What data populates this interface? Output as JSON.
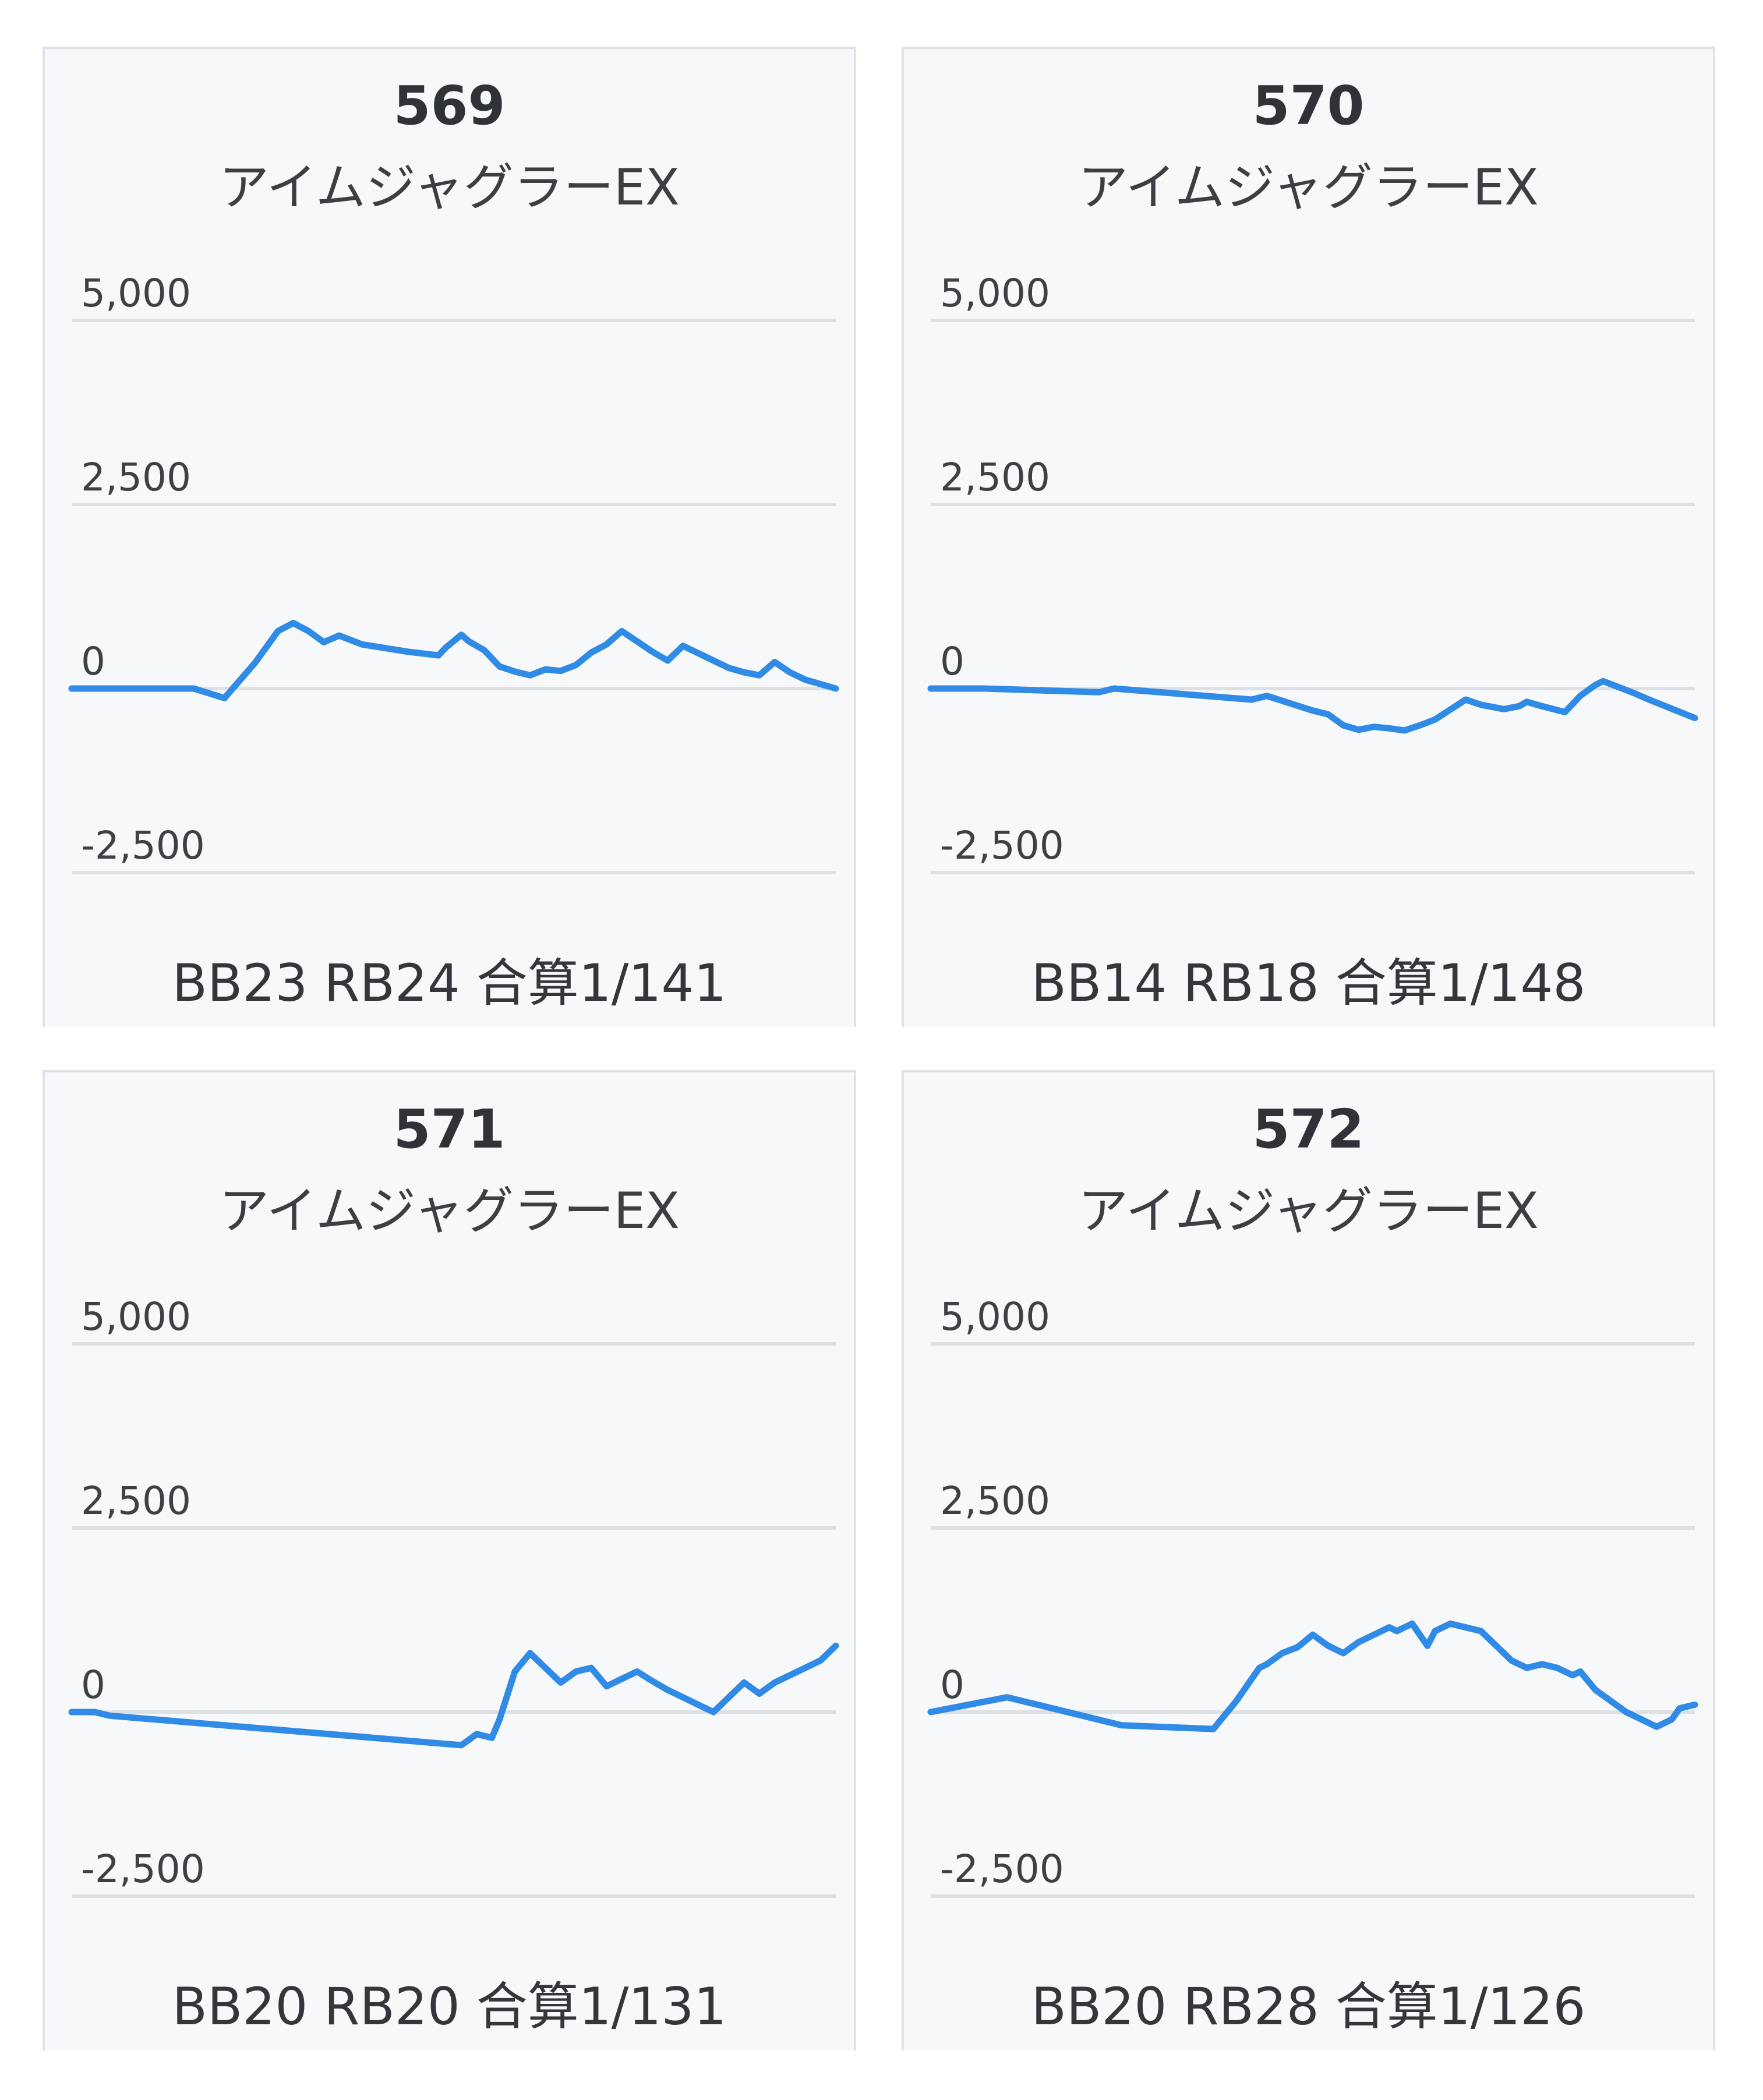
{
  "chart_data": [
    {
      "type": "line",
      "title": "569",
      "subtitle": "アイムジャグラーEX",
      "ylim": [
        -2500,
        5000
      ],
      "yticks": [
        5000,
        2500,
        0,
        -2500
      ],
      "ytick_labels": [
        "5,000",
        "2,500",
        "0",
        "-2,500"
      ],
      "stats": "BB23 RB24 合算1/141",
      "line_color": "#2f8be6",
      "grid": true,
      "x": [
        0,
        7,
        16,
        20,
        24,
        27,
        29,
        31,
        33,
        35,
        38,
        44,
        48,
        49,
        51,
        52,
        54,
        56,
        58,
        60,
        62,
        64,
        66,
        68,
        70,
        72,
        74,
        76,
        78,
        80,
        82,
        84,
        86,
        88,
        90,
        92,
        94,
        96,
        98,
        100
      ],
      "y": [
        0,
        0,
        0,
        -130,
        350,
        780,
        890,
        780,
        630,
        720,
        600,
        500,
        450,
        560,
        730,
        640,
        520,
        300,
        230,
        180,
        260,
        240,
        320,
        490,
        600,
        780,
        640,
        500,
        380,
        580,
        480,
        380,
        280,
        220,
        180,
        360,
        220,
        120,
        60,
        0
      ]
    },
    {
      "type": "line",
      "title": "570",
      "subtitle": "アイムジャグラーEX",
      "ylim": [
        -2500,
        5000
      ],
      "yticks": [
        5000,
        2500,
        0,
        -2500
      ],
      "ytick_labels": [
        "5,000",
        "2,500",
        "0",
        "-2,500"
      ],
      "stats": "BB14 RB18 合算1/148",
      "line_color": "#2f8be6",
      "grid": true,
      "x": [
        0,
        7,
        22,
        24,
        42,
        44,
        50,
        52,
        54,
        56,
        58,
        60,
        62,
        64,
        66,
        70,
        72,
        75,
        77,
        78,
        80,
        83,
        85,
        87,
        88,
        90,
        92,
        94,
        100
      ],
      "y": [
        0,
        0,
        -50,
        0,
        -150,
        -100,
        -300,
        -350,
        -500,
        -560,
        -520,
        -540,
        -570,
        -500,
        -420,
        -150,
        -220,
        -280,
        -240,
        -180,
        -240,
        -320,
        -100,
        50,
        100,
        20,
        -60,
        -150,
        -400
      ]
    },
    {
      "type": "line",
      "title": "571",
      "subtitle": "アイムジャグラーEX",
      "ylim": [
        -2500,
        5000
      ],
      "yticks": [
        5000,
        2500,
        0,
        -2500
      ],
      "ytick_labels": [
        "5,000",
        "2,500",
        "0",
        "-2,500"
      ],
      "stats": "BB20 RB20 合算1/131",
      "line_color": "#2f8be6",
      "grid": true,
      "x": [
        0,
        3,
        5,
        51,
        53,
        55,
        56,
        58,
        60,
        62,
        64,
        66,
        68,
        70,
        72,
        74,
        76,
        78,
        80,
        82,
        84,
        86,
        88,
        90,
        92,
        94,
        95,
        96,
        98,
        100
      ],
      "y": [
        0,
        0,
        -50,
        -450,
        -300,
        -350,
        -100,
        550,
        800,
        600,
        400,
        550,
        600,
        350,
        450,
        550,
        420,
        300,
        200,
        100,
        0,
        200,
        400,
        250,
        400,
        500,
        550,
        600,
        700,
        900
      ]
    },
    {
      "type": "line",
      "title": "572",
      "subtitle": "アイムジャグラーEX",
      "ylim": [
        -2500,
        5000
      ],
      "yticks": [
        5000,
        2500,
        0,
        -2500
      ],
      "ytick_labels": [
        "5,000",
        "2,500",
        "0",
        "-2,500"
      ],
      "stats": "BB20 RB28 合算1/126",
      "line_color": "#2f8be6",
      "grid": true,
      "x": [
        0,
        10,
        25,
        37,
        40,
        43,
        44,
        46,
        48,
        50,
        52,
        54,
        56,
        58,
        60,
        61,
        63,
        64,
        65,
        66,
        68,
        70,
        72,
        74,
        76,
        78,
        80,
        82,
        84,
        85,
        87,
        89,
        91,
        93,
        95,
        97,
        98,
        100
      ],
      "y": [
        0,
        200,
        -180,
        -230,
        150,
        600,
        650,
        800,
        880,
        1050,
        900,
        800,
        950,
        1050,
        1150,
        1100,
        1200,
        1050,
        900,
        1100,
        1200,
        1150,
        1100,
        900,
        700,
        600,
        650,
        600,
        500,
        550,
        300,
        150,
        0,
        -100,
        -200,
        -100,
        50,
        100
      ]
    }
  ]
}
